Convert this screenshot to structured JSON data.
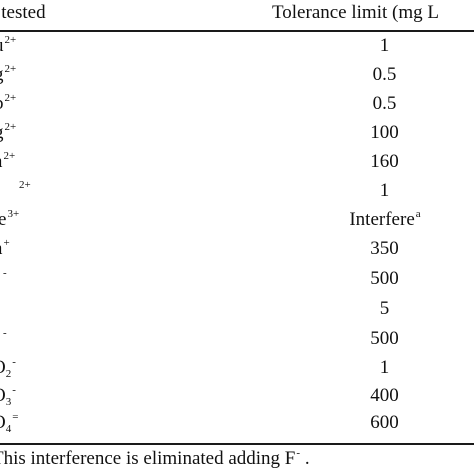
{
  "table": {
    "header": {
      "ion_col": "n tested",
      "tolerance_col": "Tolerance limit (mg L"
    },
    "rows": [
      {
        "ion_base": "u",
        "ion_sub": "",
        "ion_sup": "2+",
        "value": "1",
        "value_sup": ""
      },
      {
        "ion_base": "g",
        "ion_sub": "",
        "ion_sup": "2+",
        "value": "0.5",
        "value_sup": ""
      },
      {
        "ion_base": "b",
        "ion_sub": "",
        "ion_sup": "2+",
        "value": "0.5",
        "value_sup": ""
      },
      {
        "ion_base": "g",
        "ion_sub": "",
        "ion_sup": "2+",
        "value": "100",
        "value_sup": ""
      },
      {
        "ion_base": "a",
        "ion_sub": "",
        "ion_sup": "2+",
        "value": "160",
        "value_sup": ""
      },
      {
        "ion_base": "",
        "ion_sub": "",
        "ion_sup": "2+",
        "value": "1",
        "value_sup": ""
      },
      {
        "ion_base": "e",
        "ion_sub": "",
        "ion_sup": "3+",
        "value": "Interfere",
        "value_sup": "a"
      },
      {
        "ion_base": "a",
        "ion_sub": "",
        "ion_sup": "+",
        "value": "350",
        "value_sup": ""
      },
      {
        "ion_base": "",
        "ion_sub": "",
        "ion_sup": "-",
        "value": "500",
        "value_sup": ""
      },
      {
        "ion_base": "",
        "ion_sub": "",
        "ion_sup": "",
        "value": "5",
        "value_sup": ""
      },
      {
        "ion_base": "",
        "ion_sub": "",
        "ion_sup": "-",
        "value": "500",
        "value_sup": ""
      },
      {
        "ion_base": "O",
        "ion_sub": "2",
        "ion_sup": "-",
        "value": "1",
        "value_sup": ""
      },
      {
        "ion_base": "O",
        "ion_sub": "3",
        "ion_sup": "-",
        "value": "400",
        "value_sup": ""
      },
      {
        "ion_base": "O",
        "ion_sub": "4",
        "ion_sup": "=",
        "value": "600",
        "value_sup": ""
      }
    ],
    "footnote": {
      "text": "This interference is eliminated adding F",
      "sup": "-",
      "tail": " ."
    }
  }
}
